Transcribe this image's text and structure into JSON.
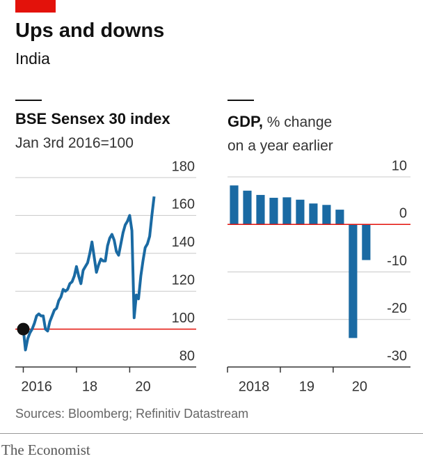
{
  "title": "Ups and downs",
  "subtitle": "India",
  "source": "Sources: Bloomberg; Refinitiv Datastream",
  "brand": "The Economist",
  "chart_data": [
    {
      "type": "line",
      "title": "BSE Sensex 30 index",
      "subtitle": "Jan 3rd 2016=100",
      "color": "#1a6aa3",
      "baseline": 100,
      "baseline_color": "#e3120b",
      "x": [
        2016,
        2016.083,
        2016.167,
        2016.25,
        2016.333,
        2016.417,
        2016.5,
        2016.583,
        2016.667,
        2016.75,
        2016.833,
        2016.917,
        2017,
        2017.083,
        2017.167,
        2017.25,
        2017.333,
        2017.417,
        2017.5,
        2017.583,
        2017.667,
        2017.75,
        2017.833,
        2017.917,
        2018,
        2018.083,
        2018.167,
        2018.25,
        2018.333,
        2018.417,
        2018.5,
        2018.583,
        2018.667,
        2018.75,
        2018.833,
        2018.917,
        2019,
        2019.083,
        2019.167,
        2019.25,
        2019.333,
        2019.417,
        2019.5,
        2019.583,
        2019.667,
        2019.75,
        2019.833,
        2019.917,
        2020,
        2020.083,
        2020.167,
        2020.25,
        2020.333,
        2020.417,
        2020.5,
        2020.583,
        2020.667,
        2020.75,
        2020.833,
        2020.917
      ],
      "values": [
        100,
        89,
        95,
        98,
        100,
        103,
        107,
        108,
        107,
        107,
        100,
        99,
        104,
        107,
        110,
        111,
        115,
        117,
        121,
        120,
        121,
        124,
        125,
        128,
        133,
        128,
        124,
        131,
        133,
        135,
        140,
        146,
        138,
        130,
        134,
        137,
        136,
        136,
        144,
        148,
        150,
        147,
        141,
        139,
        145,
        151,
        155,
        157,
        160,
        152,
        106,
        118,
        116,
        128,
        136,
        143,
        145,
        149,
        160,
        170
      ],
      "xlim": [
        2015.7,
        2022.5
      ],
      "xticks": [
        {
          "value": 2016,
          "label": "2016"
        },
        {
          "value": 2018,
          "label": "18"
        },
        {
          "value": 2020,
          "label": "20"
        }
      ],
      "ylim": [
        80,
        180
      ],
      "yticks": [
        80,
        100,
        120,
        140,
        160,
        180
      ],
      "grid": true
    },
    {
      "type": "bar",
      "title": "GDP,",
      "subtitle": "% change on a year earlier",
      "color": "#1a6aa3",
      "baseline": 0,
      "baseline_color": "#e3120b",
      "x": [
        2018.125,
        2018.375,
        2018.625,
        2018.875,
        2019.125,
        2019.375,
        2019.625,
        2019.875,
        2020.125,
        2020.375,
        2020.625
      ],
      "values": [
        8.2,
        7.1,
        6.2,
        5.6,
        5.7,
        5.2,
        4.4,
        4.1,
        3.1,
        -23.9,
        -7.5
      ],
      "xlim": [
        2018,
        2021.7
      ],
      "xticks": [
        {
          "value": 2018,
          "label": "2018"
        },
        {
          "value": 2019,
          "label": "19"
        },
        {
          "value": 2020,
          "label": "20"
        }
      ],
      "ylim": [
        -30,
        10
      ],
      "yticks": [
        -30,
        -20,
        -10,
        0,
        10
      ],
      "grid": true
    }
  ]
}
